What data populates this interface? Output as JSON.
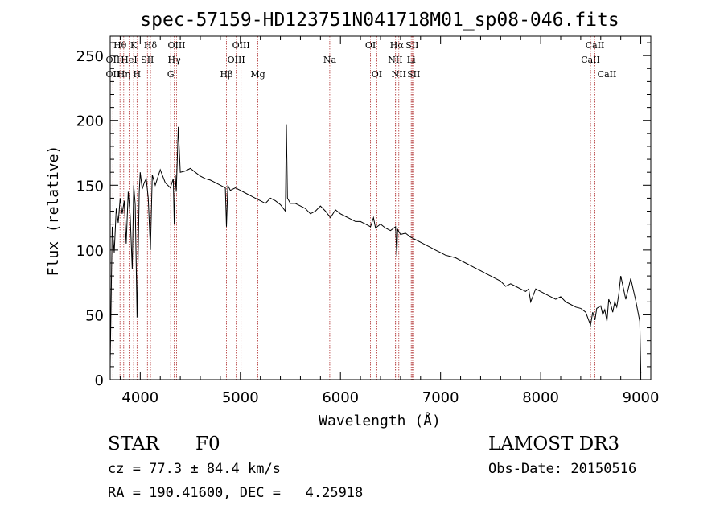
{
  "chart_data": {
    "type": "line",
    "title": "spec-57159-HD123751N041718M01_sp08-046.fits",
    "xlabel": "Wavelength (Å)",
    "ylabel": "Flux (relative)",
    "xlim": [
      3700,
      9100
    ],
    "ylim": [
      0,
      265
    ],
    "xticks": [
      4000,
      5000,
      6000,
      7000,
      8000,
      9000
    ],
    "yticks": [
      0,
      50,
      100,
      150,
      200,
      250
    ],
    "x": [
      3700,
      3720,
      3740,
      3760,
      3780,
      3800,
      3820,
      3840,
      3860,
      3880,
      3900,
      3920,
      3935,
      3950,
      3968,
      3990,
      4000,
      4020,
      4040,
      4060,
      4080,
      4102,
      4120,
      4150,
      4200,
      4250,
      4300,
      4330,
      4340,
      4350,
      4360,
      4380,
      4400,
      4450,
      4500,
      4550,
      4600,
      4650,
      4700,
      4750,
      4800,
      4850,
      4861,
      4875,
      4900,
      4950,
      5000,
      5050,
      5100,
      5150,
      5200,
      5250,
      5300,
      5350,
      5400,
      5450,
      5460,
      5470,
      5500,
      5550,
      5600,
      5650,
      5700,
      5750,
      5800,
      5850,
      5900,
      5950,
      6000,
      6050,
      6100,
      6150,
      6200,
      6250,
      6300,
      6330,
      6350,
      6400,
      6450,
      6500,
      6550,
      6563,
      6570,
      6600,
      6650,
      6700,
      6750,
      6800,
      6850,
      6900,
      6950,
      7000,
      7050,
      7100,
      7150,
      7200,
      7250,
      7300,
      7350,
      7400,
      7450,
      7500,
      7550,
      7600,
      7650,
      7700,
      7750,
      7800,
      7850,
      7880,
      7900,
      7950,
      8000,
      8050,
      8100,
      8150,
      8200,
      8250,
      8300,
      8350,
      8400,
      8450,
      8498,
      8520,
      8542,
      8560,
      8600,
      8620,
      8640,
      8662,
      8680,
      8700,
      8720,
      8740,
      8760,
      8780,
      8800,
      8850,
      8900,
      8950,
      8990,
      9000
    ],
    "y": [
      12,
      118,
      98,
      132,
      121,
      140,
      128,
      138,
      105,
      145,
      126,
      85,
      150,
      135,
      48,
      145,
      160,
      147,
      152,
      155,
      140,
      100,
      158,
      150,
      162,
      152,
      148,
      155,
      120,
      158,
      145,
      195,
      160,
      161,
      163,
      160,
      157,
      155,
      154,
      152,
      150,
      148,
      118,
      150,
      146,
      148,
      146,
      144,
      142,
      140,
      138,
      136,
      140,
      138,
      135,
      130,
      197,
      140,
      136,
      136,
      134,
      132,
      128,
      130,
      134,
      130,
      125,
      131,
      128,
      126,
      124,
      122,
      122,
      120,
      118,
      125,
      117,
      120,
      117,
      115,
      118,
      95,
      116,
      112,
      113,
      110,
      108,
      106,
      104,
      102,
      100,
      98,
      96,
      95,
      94,
      92,
      90,
      88,
      86,
      84,
      82,
      80,
      78,
      76,
      72,
      74,
      72,
      70,
      68,
      70,
      60,
      70,
      68,
      66,
      64,
      62,
      64,
      60,
      58,
      56,
      55,
      52,
      42,
      52,
      46,
      55,
      57,
      50,
      54,
      45,
      62,
      58,
      52,
      60,
      56,
      66,
      80,
      62,
      78,
      61,
      45,
      5
    ],
    "line_markers": [
      {
        "label": "OII",
        "wavelength": 3727,
        "row": 1
      },
      {
        "label": "OII",
        "wavelength": 3727,
        "row": 2
      },
      {
        "label": "Hθ",
        "wavelength": 3798,
        "row": 0
      },
      {
        "label": "Hη",
        "wavelength": 3835,
        "row": 2
      },
      {
        "label": "HeI",
        "wavelength": 3889,
        "row": 1
      },
      {
        "label": "K",
        "wavelength": 3934,
        "row": 0
      },
      {
        "label": "H",
        "wavelength": 3968,
        "row": 2
      },
      {
        "label": "SII",
        "wavelength": 4072,
        "row": 1
      },
      {
        "label": "Hδ",
        "wavelength": 4102,
        "row": 0
      },
      {
        "label": "G",
        "wavelength": 4304,
        "row": 2
      },
      {
        "label": "Hγ",
        "wavelength": 4340,
        "row": 1
      },
      {
        "label": "OIII",
        "wavelength": 4363,
        "row": 0
      },
      {
        "label": "Hβ",
        "wavelength": 4861,
        "row": 2
      },
      {
        "label": "OIII",
        "wavelength": 4959,
        "row": 1
      },
      {
        "label": "OIII",
        "wavelength": 5007,
        "row": 0
      },
      {
        "label": "Mg",
        "wavelength": 5175,
        "row": 2
      },
      {
        "label": "Na",
        "wavelength": 5893,
        "row": 1
      },
      {
        "label": "OI",
        "wavelength": 6300,
        "row": 0
      },
      {
        "label": "OI",
        "wavelength": 6363,
        "row": 2
      },
      {
        "label": "NII",
        "wavelength": 6548,
        "row": 1
      },
      {
        "label": "Hα",
        "wavelength": 6563,
        "row": 0
      },
      {
        "label": "NII",
        "wavelength": 6583,
        "row": 2
      },
      {
        "label": "Li",
        "wavelength": 6707,
        "row": 1
      },
      {
        "label": "SII",
        "wavelength": 6716,
        "row": 0
      },
      {
        "label": "SII",
        "wavelength": 6731,
        "row": 2
      },
      {
        "label": "CaII",
        "wavelength": 8498,
        "row": 1
      },
      {
        "label": "CaII",
        "wavelength": 8542,
        "row": 0
      },
      {
        "label": "CaII",
        "wavelength": 8662,
        "row": 2
      }
    ],
    "colors": {
      "spectrum": "#000000",
      "markers": "#b03030",
      "axes": "#000000"
    }
  },
  "info": {
    "object_class": "STAR",
    "subclass": "F0",
    "survey": "LAMOST DR3",
    "redshift_line": "cz = 77.3 ± 84.4 km/s",
    "obs_date": "Obs-Date: 20150516",
    "coords": "RA = 190.41600, DEC =   4.25918"
  }
}
